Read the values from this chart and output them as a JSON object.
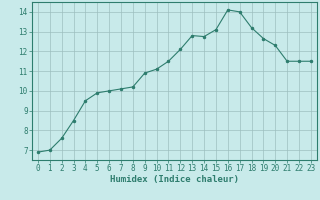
{
  "x": [
    0,
    1,
    2,
    3,
    4,
    5,
    6,
    7,
    8,
    9,
    10,
    11,
    12,
    13,
    14,
    15,
    16,
    17,
    18,
    19,
    20,
    21,
    22,
    23
  ],
  "y": [
    6.9,
    7.0,
    7.6,
    8.5,
    9.5,
    9.9,
    10.0,
    10.1,
    10.2,
    10.9,
    11.1,
    11.5,
    12.1,
    12.8,
    12.75,
    13.1,
    14.1,
    14.0,
    13.2,
    12.65,
    12.3,
    11.5,
    11.5,
    11.5
  ],
  "line_color": "#2e7d6e",
  "bg_color": "#c8eaea",
  "grid_color": "#9dbfbf",
  "xlabel": "Humidex (Indice chaleur)",
  "xlim": [
    -0.5,
    23.5
  ],
  "ylim": [
    6.5,
    14.5
  ],
  "yticks": [
    7,
    8,
    9,
    10,
    11,
    12,
    13,
    14
  ],
  "xticks": [
    0,
    1,
    2,
    3,
    4,
    5,
    6,
    7,
    8,
    9,
    10,
    11,
    12,
    13,
    14,
    15,
    16,
    17,
    18,
    19,
    20,
    21,
    22,
    23
  ],
  "tick_color": "#2e7d6e",
  "tick_fontsize": 5.5,
  "xlabel_fontsize": 6.5
}
